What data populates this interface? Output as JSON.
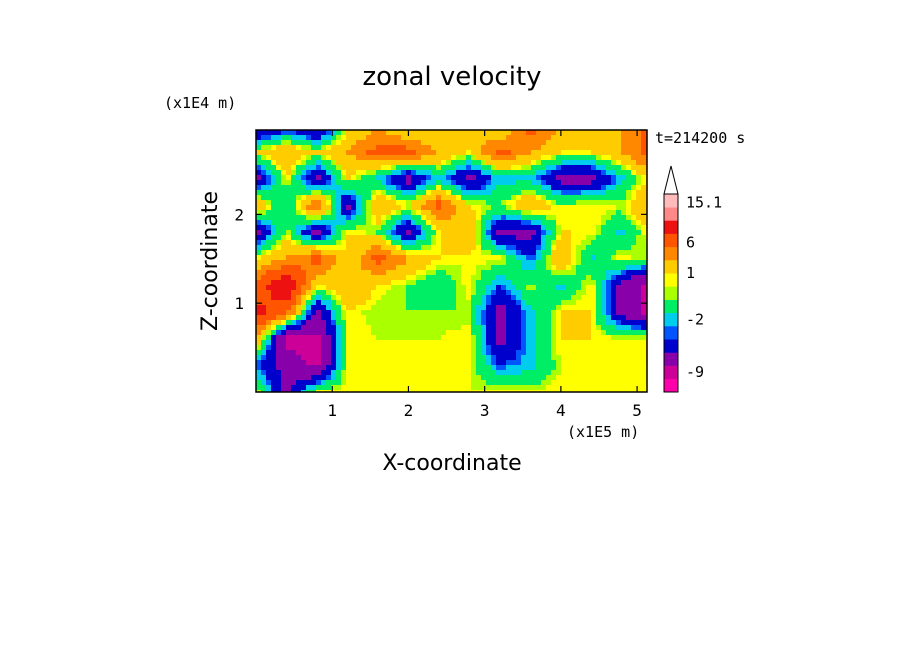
{
  "chart_data": {
    "type": "heatmap",
    "title": "zonal velocity",
    "xlabel": "X-coordinate",
    "ylabel": "Z-coordinate",
    "x_unit": "(x1E5 m)",
    "y_unit": "(x1E4 m)",
    "time_label": "t=214200 s",
    "x_ticks": [
      "1",
      "2",
      "3",
      "4",
      "5"
    ],
    "y_ticks": [
      "1",
      "2"
    ],
    "xlim": [
      0,
      5.13
    ],
    "ylim": [
      0,
      2.95
    ],
    "x_tick_values": [
      1,
      2,
      3,
      4,
      5
    ],
    "y_tick_values": [
      1,
      2
    ],
    "colorbar": {
      "labels": [
        "15.1",
        "6",
        "1",
        "-2",
        "-9"
      ],
      "label_values": [
        15.1,
        6,
        1,
        -2,
        -9
      ],
      "extend": "max",
      "bands": [
        "#ff00aa",
        "#cc0099",
        "#8800aa",
        "#0000cc",
        "#0055ff",
        "#00ccee",
        "#00ee66",
        "#aaff00",
        "#ffff00",
        "#ffcc00",
        "#ff8800",
        "#ff5500",
        "#ee1111",
        "#ff8888",
        "#ffbbbb"
      ],
      "band_values": [
        -12,
        -10,
        -8,
        -5,
        -3,
        -2.5,
        -1.5,
        0,
        0.5,
        1,
        3,
        5,
        8,
        11,
        14
      ]
    },
    "contour_fill_values": {
      "x": [
        0,
        0.4,
        0.8,
        1.2,
        1.6,
        2.0,
        2.4,
        2.8,
        3.2,
        3.6,
        4.0,
        4.4,
        4.8,
        5.13
      ],
      "z": [
        0,
        0.3,
        0.6,
        0.9,
        1.2,
        1.5,
        1.8,
        2.1,
        2.4,
        2.7,
        2.95
      ],
      "values": [
        [
          1,
          -6,
          0.5,
          1,
          0.5,
          0.5,
          1,
          0.5,
          1,
          0.5,
          1,
          0.5,
          1,
          0.5
        ],
        [
          -3,
          -6,
          -9,
          1,
          0.5,
          0.5,
          0.5,
          0.5,
          -3,
          -2,
          0.5,
          1,
          0.5,
          1
        ],
        [
          3,
          -9,
          -9,
          1,
          0.5,
          0.5,
          0.5,
          1,
          -6,
          -2,
          1,
          1,
          0.5,
          1
        ],
        [
          9,
          6,
          -6,
          1,
          0,
          0,
          0,
          0,
          -6,
          -2,
          1,
          1,
          -6,
          -9
        ],
        [
          6,
          11,
          1,
          3,
          1,
          0,
          -1.5,
          1,
          -3,
          0.5,
          -2,
          1,
          -6,
          -9
        ],
        [
          1,
          3,
          6,
          1,
          6,
          3,
          1,
          0.5,
          1,
          -3,
          3,
          -2,
          1,
          0
        ],
        [
          -6,
          0.5,
          -6,
          1,
          0,
          -6,
          1,
          3,
          -6,
          -6,
          1,
          1,
          -2,
          1
        ],
        [
          3,
          -2,
          6,
          -6,
          3,
          1,
          6,
          1,
          0,
          3,
          0.5,
          1,
          0.5,
          3
        ],
        [
          -6,
          1,
          -6,
          1,
          -2,
          -6,
          -2,
          -6,
          -2,
          -2,
          -6,
          -6,
          -2,
          1
        ],
        [
          1,
          3,
          1,
          3,
          6,
          6,
          3,
          1,
          6,
          3,
          1,
          1,
          3,
          6
        ],
        [
          -6,
          -3,
          -6,
          1,
          3,
          1,
          1,
          3,
          1,
          6,
          3,
          1,
          3,
          6
        ]
      ]
    }
  }
}
